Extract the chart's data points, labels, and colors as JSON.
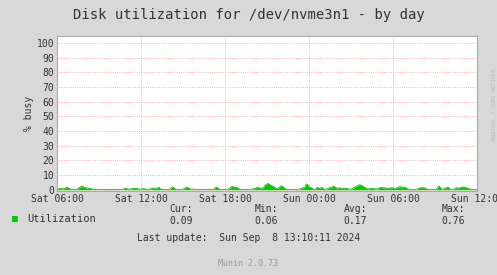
{
  "title": "Disk utilization for /dev/nvme3n1 - by day",
  "ylabel": "% busy",
  "background_color": "#d8d8d8",
  "plot_bg_color": "#ffffff",
  "grid_color": "#ff9999",
  "line_color": "#00cc00",
  "fill_color": "#00cc00",
  "yticks": [
    0,
    10,
    20,
    30,
    40,
    50,
    60,
    70,
    80,
    90,
    100
  ],
  "ylim": [
    -1,
    105
  ],
  "xtick_labels": [
    "Sat 06:00",
    "Sat 12:00",
    "Sat 18:00",
    "Sun 00:00",
    "Sun 06:00",
    "Sun 12:00"
  ],
  "legend_label": "Utilization",
  "cur_val": "0.09",
  "min_val": "0.06",
  "avg_val": "0.17",
  "max_val": "0.76",
  "last_update": "Last update:  Sun Sep  8 13:10:11 2024",
  "munin_version": "Munin 2.0.73",
  "watermark": "RRDTOOL / TOBI OETIKER",
  "title_fontsize": 10,
  "axis_fontsize": 7,
  "legend_fontsize": 7.5,
  "small_fontsize": 6
}
